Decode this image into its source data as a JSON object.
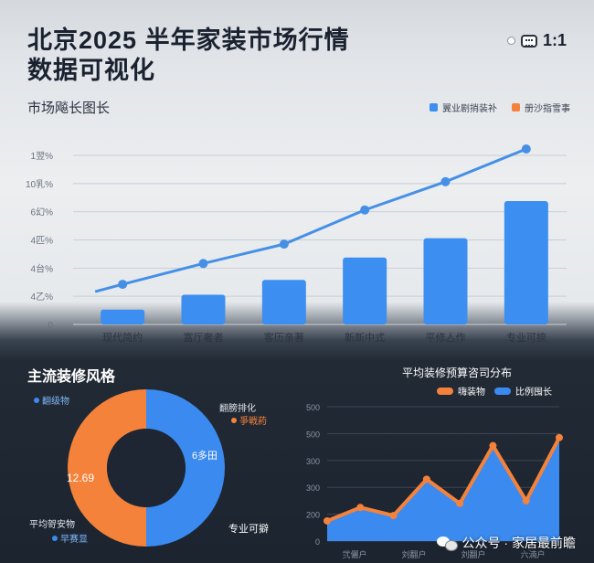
{
  "header": {
    "title_line1": "北京2025 半年家装市场行情",
    "title_line2": "数据可视化",
    "ratio_label": "1:1",
    "ratio_icon": "aspect-ratio-icon"
  },
  "colors": {
    "bar": "#3c8ff0",
    "line": "#4590e6",
    "orange": "#f4823a",
    "donut_blue": "#3b8af0"
  },
  "top_chart": {
    "section_title": "市场飚长图长",
    "legend": [
      {
        "label": "翼业剧捎装补",
        "color": "#3c8ff0"
      },
      {
        "label": "册沙指雪事",
        "color": "#f4823a"
      }
    ]
  },
  "chart_data": [
    {
      "type": "bar",
      "title": "市场飚长图长",
      "categories": [
        "现代简约",
        "富厅奢者",
        "客历亲著",
        "新新中式",
        "平修亼作",
        "专业可捺"
      ],
      "ytick_labels": [
        "0",
        "4乙%",
        "4台%",
        "4匹%",
        "6幻%",
        "10乳%",
        "1翌%"
      ],
      "series": [
        {
          "name": "翼业剧捎装补",
          "kind": "bar",
          "values": [
            1,
            2,
            3,
            4.5,
            5.8,
            8.3
          ]
        },
        {
          "name": "册沙指雪事",
          "kind": "line",
          "values": [
            2.7,
            4.1,
            5.4,
            7.7,
            9.6,
            11.8
          ]
        }
      ],
      "ylim": [
        0,
        12.6
      ]
    },
    {
      "type": "pie",
      "title": "主流装修风格",
      "center_value": "12.69",
      "slices": [
        {
          "label": "翻级物",
          "value": 50,
          "color": "#3b8af0"
        },
        {
          "label": "专业可擗",
          "value": 50,
          "color": "#f4823a"
        }
      ],
      "annotations": [
        "翻级物",
        "翻膀排化",
        "爭戦葯",
        "平均哿安物",
        "早赛显",
        "专业可擗",
        "6多田"
      ]
    },
    {
      "type": "area",
      "title": "平均装修预算咨司分布",
      "legend": [
        {
          "label": "嗨装物",
          "color": "#f4823a"
        },
        {
          "label": "比例囤长",
          "color": "#3b8af0"
        }
      ],
      "ytick_labels": [
        "0",
        "200",
        "300",
        "300",
        "500",
        "500"
      ],
      "xtick_labels": [
        "弐儷户",
        "刘翻户",
        "刘翻户",
        "六湳户"
      ],
      "values": [
        75,
        125,
        95,
        230,
        140,
        355,
        150,
        385
      ],
      "ylim": [
        0,
        500
      ]
    }
  ],
  "watermark": {
    "text": "公众号 · 家居最前瞻",
    "icon": "wechat-icon"
  }
}
